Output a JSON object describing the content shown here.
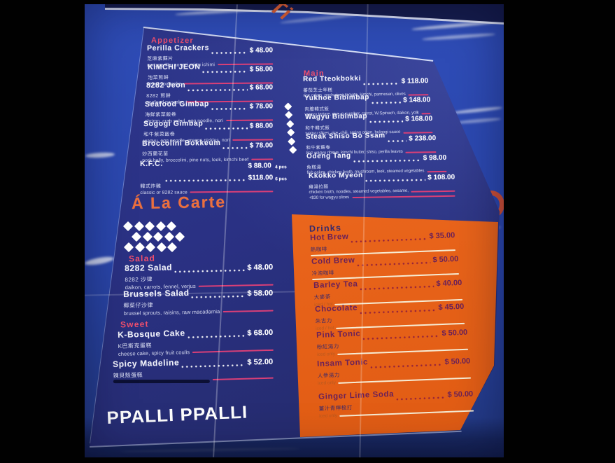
{
  "menu": {
    "brand": "PPALLI PPALLI",
    "a_la_carte_title": "Á La Carte",
    "sections": {
      "appetizer": {
        "title": "Appetizer",
        "items": [
          {
            "name": "Perilla Crackers",
            "zh": "芝麻紫蘇片",
            "desc": "nori, perilla, aonori, mizu ichimi",
            "price": "$ 48.00"
          },
          {
            "name": "KIMCHI JEON",
            "zh": "泡菜煎餅",
            "desc": "kimchi pancake",
            "price": "$ 58.00"
          },
          {
            "name": "8282 Jeon",
            "zh": "8282 煎餅",
            "desc": "seafood pancake",
            "price": "$ 68.00"
          },
          {
            "name": "Seafood Gimbap",
            "zh": "海鮮紫菜飯卷",
            "desc": "shrimp, crab salad, egg noodle, nori",
            "price": "$ 78.00"
          },
          {
            "name": "Sogogi Gimbap",
            "zh": "和牛紫菜飯卷",
            "desc": "wagyu, egg noodle, greens pickles, nori",
            "price": "$ 88.00"
          },
          {
            "name": "Broccolini Bokkeum",
            "zh": "炒西蘭花苗",
            "desc": "pork belly, broccolini, pine nuts, leek, kimchi beef",
            "price": "$ 78.00"
          },
          {
            "name": "K.F.C.",
            "zh": "韓式炸雞",
            "desc": "classic or 8282 sauce",
            "price": "$ 88.00",
            "unit": "4 pcs",
            "price2": "$118.00",
            "unit2": "6 pcs"
          }
        ]
      },
      "main": {
        "title": "Main",
        "items": [
          {
            "name": "Red Tteokbokki",
            "zh": "蕃茄芝士年糕",
            "desc": "rice cakes, gochujang tomato, kimchi, parmesan, olives",
            "price": "$ 118.00"
          },
          {
            "name": "Yukhoe Bibimbap",
            "zh": "肉膾韓式飯",
            "desc": "wagyu tartare, rice, cucumber, carrot, W.Spinach, daikon, yolk",
            "price": "$ 148.00"
          },
          {
            "name": "Wagyu Bibimbap",
            "zh": "和牛韓式飯",
            "desc": "wagyu slices, rice, chili, spring onion, bulgogi sauce",
            "price": "$ 168.00"
          },
          {
            "name": "Steak Shiso Bo Ssam",
            "zh": "和牛紫蘇卷",
            "desc": "8oz wagyu ribeye, kimchi butter, shiso, perilla leaves",
            "price": "$ 238.00"
          },
          {
            "name": "Odeng Tang",
            "zh": "魚糕湯",
            "desc": "fish cakes, chicken broth, mushroom, leek, steamed vegetables",
            "price": "$ 98.00"
          },
          {
            "name": "Kkokko Myeon",
            "zh": "雞湯拉麵",
            "desc": "chicken broth, noodles, steamed vegetables, sesame,",
            "desc2": "+$30 for wagyu slices",
            "price": "$ 108.00"
          }
        ]
      },
      "salad": {
        "title": "Salad",
        "items": [
          {
            "name": "8282 Salad",
            "zh": "8282 沙律",
            "desc": "daikon, carrots, fennel, verjus",
            "price": "$ 48.00"
          },
          {
            "name": "Brussels Salad",
            "zh": "椰菜仔沙律",
            "desc": "brussel sprouts, raisins, raw macadamia",
            "price": "$ 58.00"
          }
        ]
      },
      "sweet": {
        "title": "Sweet",
        "items": [
          {
            "name": "K-Bosque Cake",
            "zh": "K巴斯克蛋糕",
            "desc": "cheese cake, spicy fruit coulis",
            "price": "$ 68.00"
          },
          {
            "name": "Spicy Madeline",
            "zh": "辣貝殼蛋糕",
            "desc": "",
            "price": "$ 52.00",
            "scribbled": true
          }
        ]
      },
      "drinks": {
        "title": "Drinks",
        "items": [
          {
            "name": "Hot Brew",
            "zh": "熱咖啡",
            "note": "",
            "price": "$ 35.00"
          },
          {
            "name": "Cold Brew",
            "zh": "冷泡咖啡",
            "note": "",
            "price": "$ 50.00"
          },
          {
            "name": "Barley Tea",
            "zh": "大麥茶",
            "note": "iced / hot",
            "price": "$ 40.00"
          },
          {
            "name": "Chocolate",
            "zh": "朱古力",
            "note": "iced / hot",
            "price": "$ 45.00"
          },
          {
            "name": "Pink Tonic",
            "zh": "粉紅湯力",
            "note": "iced only",
            "price": "$ 50.00"
          },
          {
            "name": "Insam Tonic",
            "zh": "人參湯力",
            "note": "iced only",
            "price": "$ 50.00"
          },
          {
            "name": "Ginger Lime Soda",
            "zh": "薑汁青檸梳打",
            "note": "iced only",
            "price": "$ 50.00"
          }
        ]
      }
    }
  },
  "decor": {
    "background_letters": "Ti",
    "partial_letter": "C"
  },
  "colors": {
    "table_blue": "#2a46ac",
    "card_navy": "#2a3184",
    "panel_orange": "#e8631a",
    "heading_pink": "#ef4f6e",
    "accent_orange": "#ec6f3d",
    "underline_pink": "#d93f77",
    "drinks_text": "#6b2158",
    "cream_line": "#f6ecd4"
  }
}
